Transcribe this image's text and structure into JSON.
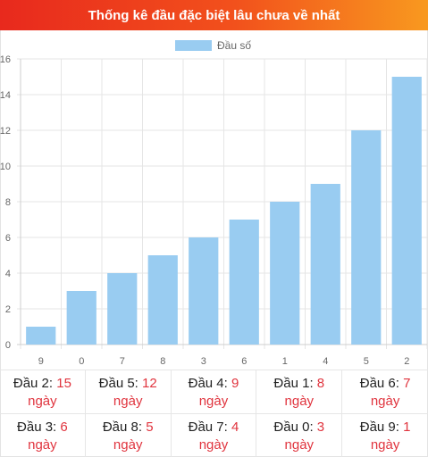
{
  "header": {
    "title": "Thống kê đầu đặc biệt lâu chưa về nhất"
  },
  "chart_data": {
    "type": "bar",
    "categories": [
      "9",
      "0",
      "7",
      "8",
      "3",
      "6",
      "1",
      "4",
      "5",
      "2"
    ],
    "series": [
      {
        "name": "Đầu số",
        "values": [
          1,
          3,
          4,
          5,
          6,
          7,
          8,
          9,
          12,
          15
        ],
        "color": "#99ccf1"
      }
    ],
    "yticks": [
      "0",
      "2",
      "4",
      "6",
      "8",
      "10",
      "12",
      "14",
      "16"
    ],
    "ylim": [
      0,
      16
    ],
    "grid": true,
    "legend_position": "top-center"
  },
  "stats": [
    {
      "label": "Đầu 2:",
      "value": "15",
      "unit": "ngày"
    },
    {
      "label": "Đầu 5:",
      "value": "12",
      "unit": "ngày"
    },
    {
      "label": "Đầu 4:",
      "value": "9",
      "unit": "ngày"
    },
    {
      "label": "Đầu 1:",
      "value": "8",
      "unit": "ngày"
    },
    {
      "label": "Đầu 6:",
      "value": "7",
      "unit": "ngày"
    },
    {
      "label": "Đầu 3:",
      "value": "6",
      "unit": "ngày"
    },
    {
      "label": "Đầu 8:",
      "value": "5",
      "unit": "ngày"
    },
    {
      "label": "Đầu 7:",
      "value": "4",
      "unit": "ngày"
    },
    {
      "label": "Đầu 0:",
      "value": "3",
      "unit": "ngày"
    },
    {
      "label": "Đầu 9:",
      "value": "1",
      "unit": "ngày"
    }
  ]
}
